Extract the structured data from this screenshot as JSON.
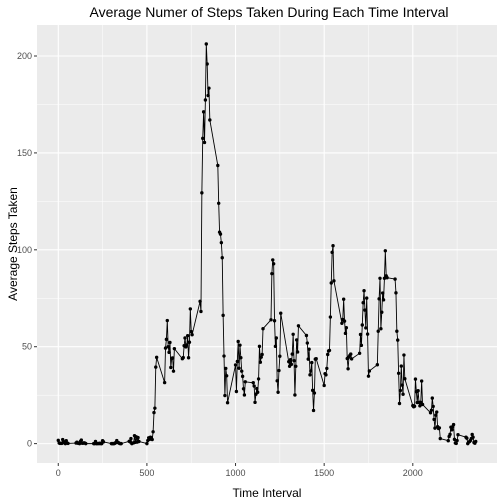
{
  "chart_data": {
    "type": "line",
    "title": "Average Numer of Steps Taken During Each Time Interval",
    "xlabel": "Time Interval",
    "ylabel": "Average Steps Taken",
    "xlim": [
      -120,
      2475
    ],
    "ylim": [
      -10,
      216
    ],
    "x_ticks": [
      0,
      500,
      1000,
      1500,
      2000
    ],
    "y_ticks": [
      0,
      50,
      100,
      150,
      200
    ],
    "grid": true,
    "markers": true,
    "colors": {
      "panel": "#ebebeb",
      "grid": "#ffffff",
      "line": "#000000"
    },
    "series": [
      {
        "values": [
          [
            0,
            1.7
          ],
          [
            5,
            0.3
          ],
          [
            10,
            0.1
          ],
          [
            15,
            0.2
          ],
          [
            20,
            0.1
          ],
          [
            25,
            2.1
          ],
          [
            30,
            0.5
          ],
          [
            35,
            0.9
          ],
          [
            40,
            0
          ],
          [
            45,
            1.5
          ],
          [
            50,
            0.3
          ],
          [
            55,
            0.1
          ],
          [
            100,
            0.3
          ],
          [
            105,
            0.7
          ],
          [
            110,
            0.2
          ],
          [
            115,
            0.3
          ],
          [
            120,
            0
          ],
          [
            125,
            1.1
          ],
          [
            130,
            1.8
          ],
          [
            135,
            0.2
          ],
          [
            140,
            0.2
          ],
          [
            145,
            0.4
          ],
          [
            150,
            0.3
          ],
          [
            155,
            0
          ],
          [
            200,
            0
          ],
          [
            205,
            0
          ],
          [
            210,
            1.1
          ],
          [
            215,
            0
          ],
          [
            220,
            0
          ],
          [
            225,
            0.1
          ],
          [
            230,
            0
          ],
          [
            235,
            0.2
          ],
          [
            240,
            0
          ],
          [
            245,
            0
          ],
          [
            250,
            1.5
          ],
          [
            255,
            0.9
          ],
          [
            300,
            0
          ],
          [
            305,
            0
          ],
          [
            310,
            0
          ],
          [
            315,
            0
          ],
          [
            320,
            0.2
          ],
          [
            325,
            0.6
          ],
          [
            330,
            1.6
          ],
          [
            335,
            0.6
          ],
          [
            340,
            0.5
          ],
          [
            345,
            0.1
          ],
          [
            350,
            0
          ],
          [
            355,
            0
          ],
          [
            400,
            1.2
          ],
          [
            405,
            0.9
          ],
          [
            410,
            2.6
          ],
          [
            415,
            0
          ],
          [
            420,
            0.3
          ],
          [
            425,
            0.4
          ],
          [
            430,
            4.1
          ],
          [
            435,
            0.7
          ],
          [
            440,
            3.5
          ],
          [
            445,
            0.8
          ],
          [
            450,
            3.1
          ],
          [
            455,
            1.1
          ],
          [
            500,
            0
          ],
          [
            505,
            1.6
          ],
          [
            510,
            3
          ],
          [
            515,
            2.2
          ],
          [
            520,
            3.3
          ],
          [
            525,
            3
          ],
          [
            530,
            2.1
          ],
          [
            535,
            6.1
          ],
          [
            540,
            16
          ],
          [
            545,
            18.3
          ],
          [
            550,
            39.5
          ],
          [
            555,
            44.5
          ],
          [
            600,
            31.5
          ],
          [
            605,
            49.3
          ],
          [
            610,
            53.8
          ],
          [
            615,
            63.5
          ],
          [
            620,
            50
          ],
          [
            625,
            47.1
          ],
          [
            630,
            52.2
          ],
          [
            635,
            39.3
          ],
          [
            640,
            44
          ],
          [
            645,
            44.2
          ],
          [
            650,
            37.4
          ],
          [
            655,
            49
          ],
          [
            700,
            43.8
          ],
          [
            705,
            44.4
          ],
          [
            710,
            50.5
          ],
          [
            715,
            54.5
          ],
          [
            720,
            49.9
          ],
          [
            725,
            50.9
          ],
          [
            730,
            55.7
          ],
          [
            735,
            44.3
          ],
          [
            740,
            52.3
          ],
          [
            745,
            69.5
          ],
          [
            750,
            57.8
          ],
          [
            755,
            56.2
          ],
          [
            800,
            73.4
          ],
          [
            805,
            68.2
          ],
          [
            810,
            129.4
          ],
          [
            815,
            157.5
          ],
          [
            820,
            171.2
          ],
          [
            825,
            155.4
          ],
          [
            830,
            177.3
          ],
          [
            835,
            206.2
          ],
          [
            840,
            195.9
          ],
          [
            845,
            179.6
          ],
          [
            850,
            183.4
          ],
          [
            855,
            167
          ],
          [
            900,
            143.5
          ],
          [
            905,
            124
          ],
          [
            910,
            109.1
          ],
          [
            915,
            108.1
          ],
          [
            920,
            103.7
          ],
          [
            925,
            95.9
          ],
          [
            930,
            66.2
          ],
          [
            935,
            45.2
          ],
          [
            940,
            24.8
          ],
          [
            945,
            38.8
          ],
          [
            950,
            35
          ],
          [
            955,
            21.1
          ],
          [
            1000,
            40.6
          ],
          [
            1005,
            26.9
          ],
          [
            1010,
            42.4
          ],
          [
            1015,
            52.7
          ],
          [
            1020,
            38.9
          ],
          [
            1025,
            50.8
          ],
          [
            1030,
            44.3
          ],
          [
            1035,
            37.4
          ],
          [
            1040,
            34.7
          ],
          [
            1045,
            28.3
          ],
          [
            1050,
            25.1
          ],
          [
            1055,
            31.9
          ],
          [
            1100,
            31.4
          ],
          [
            1105,
            29.7
          ],
          [
            1110,
            21.3
          ],
          [
            1115,
            25.5
          ],
          [
            1120,
            28.4
          ],
          [
            1125,
            26.5
          ],
          [
            1130,
            33.4
          ],
          [
            1135,
            50.2
          ],
          [
            1140,
            42
          ],
          [
            1145,
            44.6
          ],
          [
            1150,
            46
          ],
          [
            1155,
            59.3
          ],
          [
            1200,
            63.9
          ],
          [
            1205,
            87.7
          ],
          [
            1210,
            94.8
          ],
          [
            1215,
            92.8
          ],
          [
            1220,
            63.4
          ],
          [
            1225,
            50.2
          ],
          [
            1230,
            54.5
          ],
          [
            1235,
            32.4
          ],
          [
            1240,
            26.5
          ],
          [
            1245,
            37.7
          ],
          [
            1250,
            45.1
          ],
          [
            1255,
            67.3
          ],
          [
            1300,
            42.3
          ],
          [
            1305,
            39.9
          ],
          [
            1310,
            43.3
          ],
          [
            1315,
            40.9
          ],
          [
            1320,
            46.2
          ],
          [
            1325,
            56.4
          ],
          [
            1330,
            42.8
          ],
          [
            1335,
            25.1
          ],
          [
            1340,
            39.9
          ],
          [
            1345,
            53.5
          ],
          [
            1350,
            47.3
          ],
          [
            1355,
            60.8
          ],
          [
            1400,
            55.8
          ],
          [
            1405,
            51.9
          ],
          [
            1410,
            43.6
          ],
          [
            1415,
            48.7
          ],
          [
            1420,
            35.5
          ],
          [
            1425,
            37.5
          ],
          [
            1430,
            41.8
          ],
          [
            1435,
            27.5
          ],
          [
            1440,
            17.1
          ],
          [
            1445,
            26.1
          ],
          [
            1450,
            43.6
          ],
          [
            1455,
            43.8
          ],
          [
            1500,
            30
          ],
          [
            1505,
            36.1
          ],
          [
            1510,
            35.5
          ],
          [
            1515,
            38.8
          ],
          [
            1520,
            46
          ],
          [
            1525,
            47.8
          ],
          [
            1530,
            48.1
          ],
          [
            1535,
            65.3
          ],
          [
            1540,
            82.9
          ],
          [
            1545,
            98.7
          ],
          [
            1550,
            102.1
          ],
          [
            1555,
            84
          ],
          [
            1600,
            62.1
          ],
          [
            1605,
            64.1
          ],
          [
            1610,
            74.5
          ],
          [
            1615,
            63.2
          ],
          [
            1620,
            56.9
          ],
          [
            1625,
            59.8
          ],
          [
            1630,
            43.9
          ],
          [
            1635,
            38.6
          ],
          [
            1640,
            44.7
          ],
          [
            1645,
            45.5
          ],
          [
            1650,
            46.2
          ],
          [
            1655,
            43.7
          ],
          [
            1700,
            46.6
          ],
          [
            1705,
            56.3
          ],
          [
            1710,
            50.7
          ],
          [
            1715,
            61.2
          ],
          [
            1720,
            72.7
          ],
          [
            1725,
            78.9
          ],
          [
            1730,
            68.9
          ],
          [
            1735,
            59.7
          ],
          [
            1740,
            75.1
          ],
          [
            1745,
            56.5
          ],
          [
            1750,
            34.8
          ],
          [
            1755,
            37.5
          ],
          [
            1800,
            40.7
          ],
          [
            1805,
            58
          ],
          [
            1810,
            74.7
          ],
          [
            1815,
            85.3
          ],
          [
            1820,
            59.3
          ],
          [
            1825,
            67.8
          ],
          [
            1830,
            77.7
          ],
          [
            1835,
            74.2
          ],
          [
            1840,
            85.3
          ],
          [
            1845,
            99.5
          ],
          [
            1850,
            86.6
          ],
          [
            1855,
            85.6
          ],
          [
            1900,
            84.9
          ],
          [
            1905,
            77.8
          ],
          [
            1910,
            58
          ],
          [
            1915,
            53.4
          ],
          [
            1920,
            36.3
          ],
          [
            1925,
            20.7
          ],
          [
            1930,
            27.4
          ],
          [
            1935,
            40
          ],
          [
            1940,
            30.2
          ],
          [
            1945,
            25.5
          ],
          [
            1950,
            45.7
          ],
          [
            1955,
            33.5
          ],
          [
            2000,
            19.6
          ],
          [
            2005,
            19
          ],
          [
            2010,
            19.3
          ],
          [
            2015,
            33.3
          ],
          [
            2020,
            26.8
          ],
          [
            2025,
            21.2
          ],
          [
            2030,
            27.3
          ],
          [
            2035,
            21.3
          ],
          [
            2040,
            19.5
          ],
          [
            2045,
            21.3
          ],
          [
            2050,
            32.3
          ],
          [
            2055,
            20.2
          ],
          [
            2100,
            15.9
          ],
          [
            2105,
            17.2
          ],
          [
            2110,
            23.5
          ],
          [
            2115,
            19.2
          ],
          [
            2120,
            12.5
          ],
          [
            2125,
            8
          ],
          [
            2130,
            14.7
          ],
          [
            2135,
            16.3
          ],
          [
            2140,
            8.7
          ],
          [
            2145,
            7.8
          ],
          [
            2150,
            8.1
          ],
          [
            2155,
            2.6
          ],
          [
            2200,
            1.5
          ],
          [
            2205,
            3.7
          ],
          [
            2210,
            4.8
          ],
          [
            2215,
            8.5
          ],
          [
            2220,
            7.1
          ],
          [
            2225,
            8.7
          ],
          [
            2230,
            9.8
          ],
          [
            2235,
            2.2
          ],
          [
            2240,
            0.3
          ],
          [
            2245,
            0.1
          ],
          [
            2250,
            1.6
          ],
          [
            2255,
            4.6
          ],
          [
            2300,
            3.3
          ],
          [
            2305,
            2.8
          ],
          [
            2310,
            0
          ],
          [
            2315,
            0.8
          ],
          [
            2320,
            1
          ],
          [
            2325,
            1.6
          ],
          [
            2330,
            2.6
          ],
          [
            2335,
            4.7
          ],
          [
            2340,
            3.3
          ],
          [
            2345,
            0.6
          ],
          [
            2350,
            0.2
          ],
          [
            2355,
            1.1
          ]
        ]
      }
    ]
  }
}
